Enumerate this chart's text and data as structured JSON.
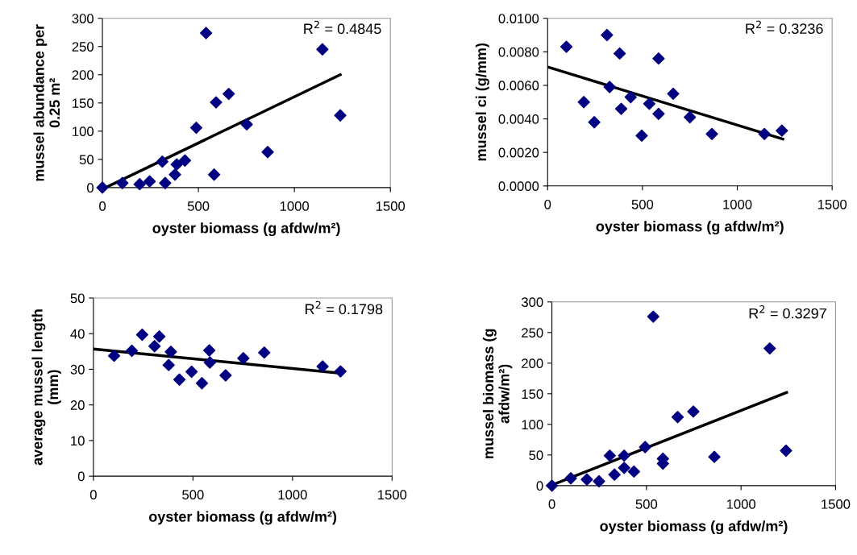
{
  "chart_data": [
    {
      "type": "scatter",
      "xlabel": "oyster biomass (g afdw/m²)",
      "ylabel": "mussel abundance per\n0.25 m²",
      "annotations": [
        "R$^{2}$ = 0.4845"
      ],
      "xlim": [
        0,
        1500
      ],
      "xticks": [
        0,
        500,
        1000,
        1500
      ],
      "ylim": [
        0,
        300
      ],
      "yticks": [
        0,
        50,
        100,
        150,
        200,
        250,
        300
      ],
      "grid": false,
      "legend": false,
      "series": [
        {
          "marker": "diamond",
          "color": "#000080",
          "x": [
            0,
            104,
            194,
            246,
            312,
            327,
            378,
            387,
            430,
            489,
            540,
            582,
            592,
            658,
            752,
            861,
            1146,
            1239
          ],
          "values": [
            0,
            8,
            6,
            11,
            46,
            8,
            23,
            41,
            48,
            106,
            274,
            23,
            151,
            166,
            112,
            63,
            245,
            128
          ]
        },
        {
          "type": "line",
          "marker": "none",
          "color": "#000000",
          "x": [
            17,
            1239
          ],
          "values": [
            0,
            200
          ]
        }
      ]
    },
    {
      "type": "scatter",
      "xlabel": "oyster biomass (g afdw/m²)",
      "ylabel": "mussel ci (g/mm)",
      "annotations": [
        "R$^{2}$ = 0.3236"
      ],
      "xlim": [
        0,
        1500
      ],
      "xticks": [
        0,
        500,
        1000,
        1500
      ],
      "ylim": [
        0,
        0.01
      ],
      "yticks": [
        {
          "value": 0,
          "label": "0.0000"
        },
        {
          "value": 0.002,
          "label": "0.0020"
        },
        {
          "value": 0.004,
          "label": "0.0040"
        },
        {
          "value": 0.006,
          "label": "0.0060"
        },
        {
          "value": 0.008,
          "label": "0.0080"
        },
        {
          "value": 0.01,
          "label": "0.0100"
        }
      ],
      "grid": false,
      "legend": false,
      "series": [
        {
          "marker": "diamond",
          "color": "#000080",
          "x": [
            99,
            191,
            246,
            313,
            327,
            380,
            388,
            438,
            496,
            536,
            585,
            585,
            662,
            750,
            866,
            1143,
            1235
          ],
          "values": [
            0.0083,
            0.005,
            0.0038,
            0.009,
            0.0059,
            0.0079,
            0.0046,
            0.0053,
            0.003,
            0.0049,
            0.0076,
            0.0043,
            0.0055,
            0.0041,
            0.0031,
            0.0031,
            0.0033
          ]
        },
        {
          "type": "line",
          "marker": "none",
          "color": "#000000",
          "x": [
            0,
            1240
          ],
          "values": [
            0.0071,
            0.0028
          ]
        }
      ]
    },
    {
      "type": "scatter",
      "xlabel": "oyster biomass (g afdw/m²)",
      "ylabel": "average mussel length\n(mm)",
      "annotations": [
        "R$^{2}$ = 0.1798"
      ],
      "xlim": [
        0,
        1500
      ],
      "xticks": [
        0,
        500,
        1000,
        1500
      ],
      "ylim": [
        0,
        50
      ],
      "yticks": [
        0,
        10,
        20,
        30,
        40,
        50
      ],
      "grid": false,
      "legend": false,
      "series": [
        {
          "marker": "diamond",
          "color": "#000080",
          "x": [
            104,
            193,
            245,
            307,
            331,
            389,
            378,
            432,
            493,
            545,
            582,
            585,
            664,
            753,
            858,
            1151,
            1241
          ],
          "values": [
            33.8,
            35.2,
            39.7,
            36.5,
            39.2,
            34.9,
            31.2,
            27.1,
            29.3,
            26.1,
            35.3,
            31.9,
            28.3,
            33.1,
            34.7,
            30.8,
            29.4
          ]
        },
        {
          "type": "line",
          "marker": "none",
          "color": "#000000",
          "x": [
            0,
            1241
          ],
          "values": [
            35.7,
            28.9
          ]
        }
      ]
    },
    {
      "type": "scatter",
      "xlabel": "oyster biomass (g afdw/m²)",
      "ylabel": "mussel biomass (g\nafdw/m²)",
      "annotations": [
        "R$^{2}$ = 0.3297"
      ],
      "xlim": [
        0,
        1500
      ],
      "xticks": [
        0,
        500,
        1000,
        1500
      ],
      "ylim": [
        0,
        300
      ],
      "yticks": [
        0,
        50,
        100,
        150,
        200,
        250,
        300
      ],
      "grid": false,
      "legend": false,
      "series": [
        {
          "marker": "diamond",
          "color": "#000080",
          "x": [
            0,
            100,
            185,
            249,
            306,
            331,
            382,
            382,
            434,
            493,
            536,
            587,
            587,
            665,
            748,
            859,
            1152,
            1238
          ],
          "values": [
            0,
            12,
            10,
            7,
            49,
            18,
            49,
            29,
            23,
            63,
            276,
            44,
            36,
            112,
            121,
            47,
            224,
            57
          ]
        },
        {
          "type": "line",
          "marker": "none",
          "color": "#000000",
          "x": [
            0,
            1241
          ],
          "values": [
            1,
            152
          ]
        }
      ]
    }
  ]
}
